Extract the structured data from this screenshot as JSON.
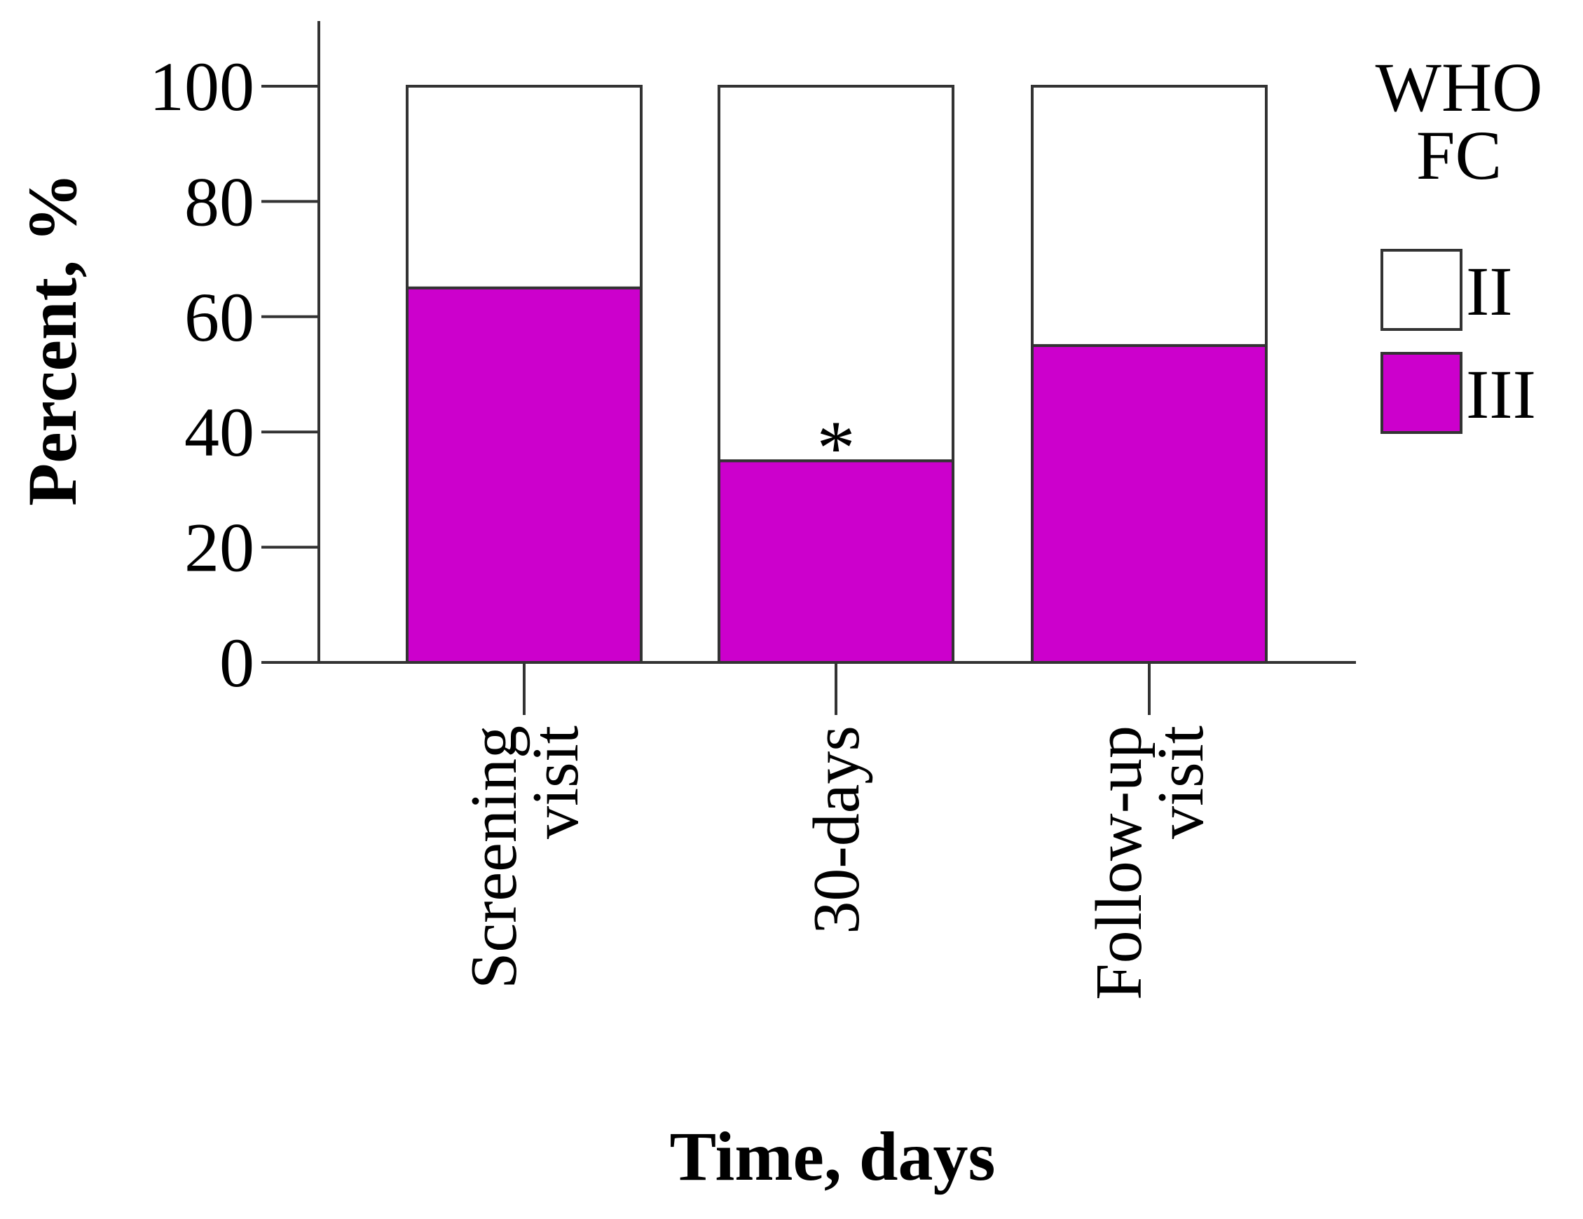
{
  "chart_data": {
    "type": "bar",
    "stacked": true,
    "categories": [
      [
        "Screening",
        "visit"
      ],
      [
        "30-days"
      ],
      [
        "Follow-up",
        "visit"
      ]
    ],
    "series": [
      {
        "name": "III",
        "values": [
          65,
          35,
          55
        ],
        "color": "#cc00cc"
      },
      {
        "name": "II",
        "values": [
          35,
          65,
          45
        ],
        "color": "#ffffff"
      }
    ],
    "xlabel": "Time, days",
    "ylabel": "Percent, %",
    "ylim": [
      0,
      100
    ],
    "yticks": [
      0,
      20,
      40,
      60,
      80,
      100
    ],
    "legend": {
      "title": [
        "WHO",
        "FC"
      ],
      "placement": "right"
    },
    "annotations": [
      {
        "text": "*",
        "category_index": 1,
        "y": 40
      }
    ],
    "grid": false
  }
}
